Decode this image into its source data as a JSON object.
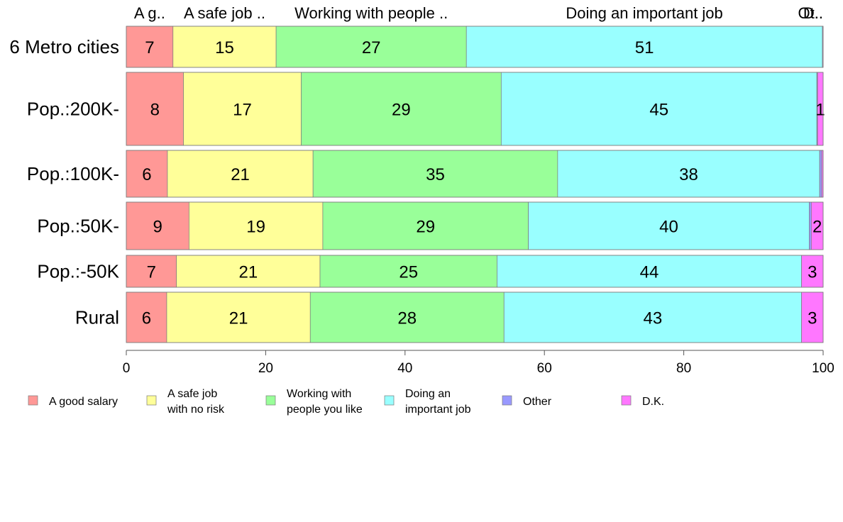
{
  "chart_data": {
    "type": "bar",
    "orientation": "horizontal",
    "stacked": true,
    "categories": [
      "6 Metro cities",
      "Pop.:200K-",
      "Pop.:100K-",
      "Pop.:50K-",
      "Pop.:-50K",
      "Rural"
    ],
    "series": [
      {
        "name": "A good salary",
        "color": "#ff9896",
        "values": [
          6.7,
          8.2,
          5.9,
          9.0,
          7.2,
          5.8
        ],
        "labels": [
          "7",
          "8",
          "6",
          "9",
          "7",
          "6"
        ],
        "top_label": "A g.."
      },
      {
        "name": "A safe job with no risk",
        "color": "#ffff99",
        "values": [
          14.8,
          16.9,
          20.9,
          19.2,
          20.6,
          20.6
        ],
        "labels": [
          "15",
          "17",
          "21",
          "19",
          "21",
          "21"
        ],
        "top_label": "A safe job .."
      },
      {
        "name": "Working with people you like",
        "color": "#99ff99",
        "values": [
          27.3,
          28.7,
          35.1,
          29.5,
          25.4,
          27.8
        ],
        "labels": [
          "27",
          "29",
          "35",
          "29",
          "25",
          "28"
        ],
        "top_label": "Working with people .."
      },
      {
        "name": "Doing an important job",
        "color": "#99ffff",
        "values": [
          51.1,
          45.3,
          37.6,
          40.3,
          43.7,
          42.7
        ],
        "labels": [
          "51",
          "45",
          "38",
          "40",
          "44",
          "43"
        ],
        "top_label": "Doing an important job"
      },
      {
        "name": "Other",
        "color": "#9999ff",
        "values": [
          0.0,
          0.1,
          0.3,
          0.3,
          0.0,
          0.0
        ],
        "labels": [
          "",
          "",
          "",
          "",
          "",
          ""
        ],
        "top_label": "Ot.."
      },
      {
        "name": "D.K.",
        "color": "#ff77ff",
        "values": [
          0.1,
          0.8,
          0.2,
          1.7,
          3.1,
          3.1
        ],
        "labels": [
          "",
          "1",
          "",
          "2",
          "3",
          "3"
        ],
        "top_label": "D.."
      }
    ],
    "xlim": [
      0,
      100
    ],
    "xticks": [
      "0",
      "20",
      "40",
      "60",
      "80",
      "100"
    ],
    "legend_placement": "bottom",
    "legend": [
      {
        "lines": [
          "A good salary"
        ],
        "color": "#ff9896"
      },
      {
        "lines": [
          "A safe job",
          "with no risk"
        ],
        "color": "#ffff99"
      },
      {
        "lines": [
          "Working with",
          "people you like"
        ],
        "color": "#99ff99"
      },
      {
        "lines": [
          "Doing an",
          "important job"
        ],
        "color": "#99ffff"
      },
      {
        "lines": [
          "Other"
        ],
        "color": "#9999ff"
      },
      {
        "lines": [
          "D.K."
        ],
        "color": "#ff77ff"
      }
    ]
  }
}
